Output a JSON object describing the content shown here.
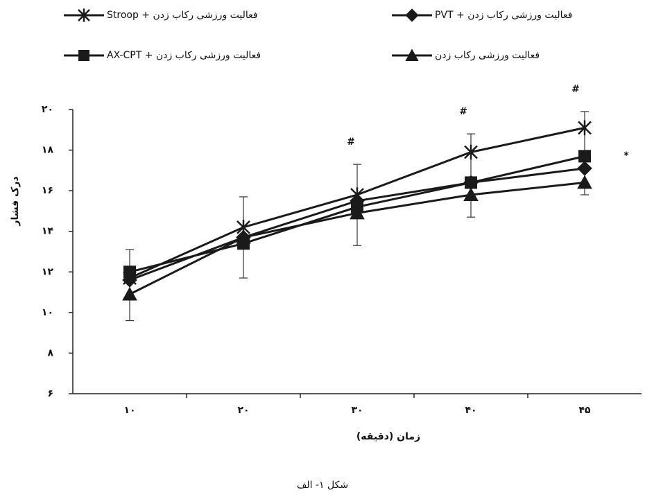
{
  "chart_data": {
    "type": "line",
    "x_label": "زمان (دقیقه)",
    "y_label": "درک فشار",
    "caption": "شکل ۱- الف",
    "categories": [
      "۱۰",
      "۲۰",
      "۳۰",
      "۴۰",
      "۴۵"
    ],
    "ylim": [
      6,
      20
    ],
    "yticks": [
      {
        "value": 6,
        "label": "۶"
      },
      {
        "value": 8,
        "label": "۸"
      },
      {
        "value": 10,
        "label": "۱۰"
      },
      {
        "value": 12,
        "label": "۱۲"
      },
      {
        "value": 14,
        "label": "۱۴"
      },
      {
        "value": 16,
        "label": "۱۶"
      },
      {
        "value": 18,
        "label": "۱۸"
      },
      {
        "value": 20,
        "label": "۲۰"
      }
    ],
    "series": [
      {
        "name": "فعالیت ورزشی رکاب زدن + Stroop",
        "color": "#1a1a1a",
        "marker": "star",
        "values": [
          11.7,
          14.2,
          15.8,
          17.9,
          19.1
        ]
      },
      {
        "name": "فعالیت ورزشی رکاب زدن + PVT",
        "color": "#1a1a1a",
        "marker": "diamond",
        "values": [
          11.6,
          13.7,
          15.5,
          16.4,
          17.1
        ]
      },
      {
        "name": "فعالیت ورزشی رکاب زدن + AX-CPT",
        "color": "#1a1a1a",
        "marker": "square",
        "values": [
          12.0,
          13.4,
          15.2,
          16.4,
          17.7
        ]
      },
      {
        "name": "فعالیت ورزشی رکاب زدن",
        "color": "#1a1a1a",
        "marker": "triangle",
        "values": [
          10.9,
          13.7,
          14.9,
          15.8,
          16.4
        ]
      }
    ],
    "error_bars": {
      "low": [
        9.6,
        11.7,
        13.3,
        14.7,
        15.8
      ],
      "high": [
        13.1,
        15.7,
        17.3,
        18.8,
        19.9
      ]
    },
    "significance_marks": [
      null,
      null,
      "#",
      "#",
      "#"
    ],
    "series_note": "*"
  }
}
